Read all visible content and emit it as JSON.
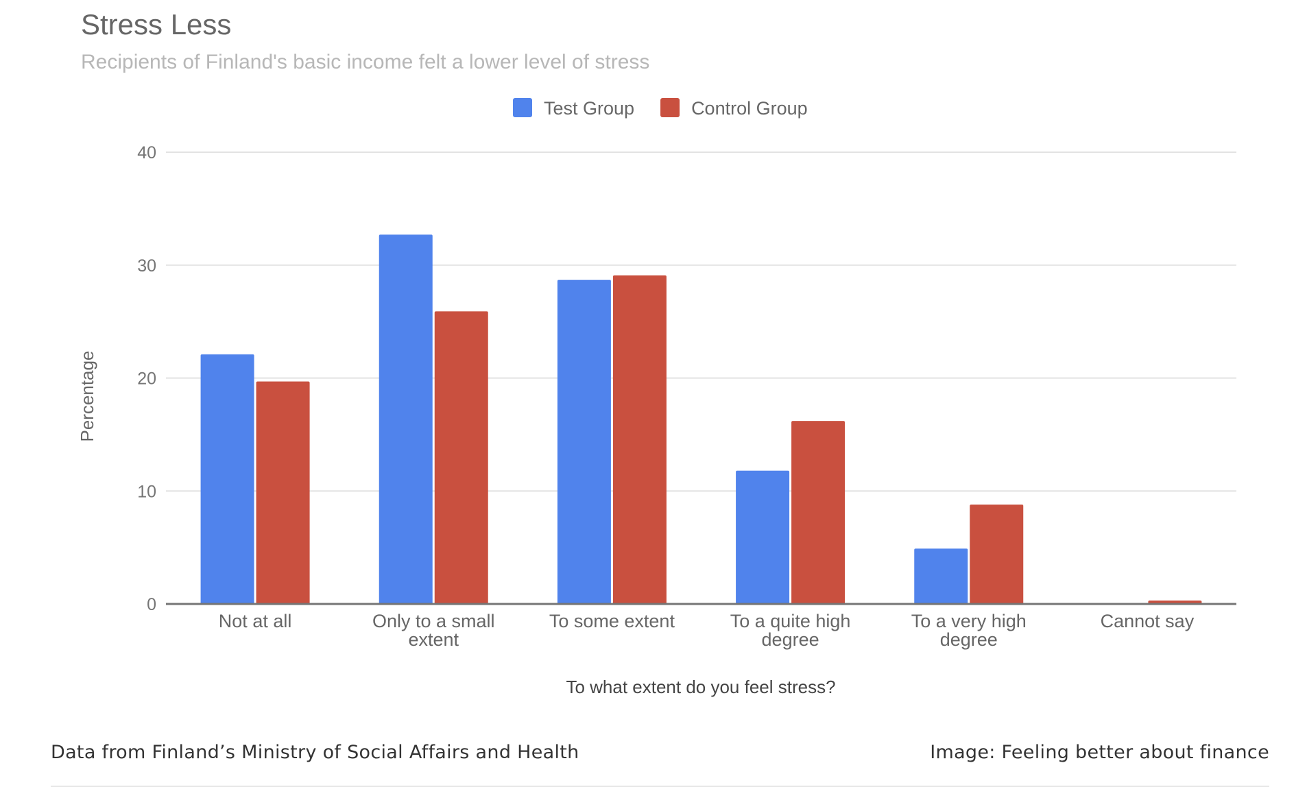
{
  "chart_data": {
    "type": "bar",
    "title": "Stress Less",
    "subtitle": "Recipients of Finland's basic income felt a lower level of stress",
    "xlabel": "To what extent do you feel stress?",
    "ylabel": "Percentage",
    "ylim": [
      0,
      40
    ],
    "yticks": [
      "0",
      "10",
      "20",
      "30",
      "40"
    ],
    "grid": true,
    "legend_position": "top",
    "categories": [
      [
        "Not at all"
      ],
      [
        "Only to a small",
        "extent"
      ],
      [
        "To some extent"
      ],
      [
        "To a quite high",
        "degree"
      ],
      [
        "To a very high",
        "degree"
      ],
      [
        "Cannot say"
      ]
    ],
    "series": [
      {
        "name": "Test Group",
        "color": "#5083ec",
        "values": [
          22.1,
          32.7,
          28.7,
          11.8,
          4.9,
          0
        ]
      },
      {
        "name": "Control Group",
        "color": "#c9503f",
        "values": [
          19.7,
          25.9,
          29.1,
          16.2,
          8.8,
          0.3
        ]
      }
    ]
  },
  "footer": {
    "source": "Data from Finland’s Ministry of Social Affairs and Health",
    "credit": "Image: Feeling better about finance"
  }
}
